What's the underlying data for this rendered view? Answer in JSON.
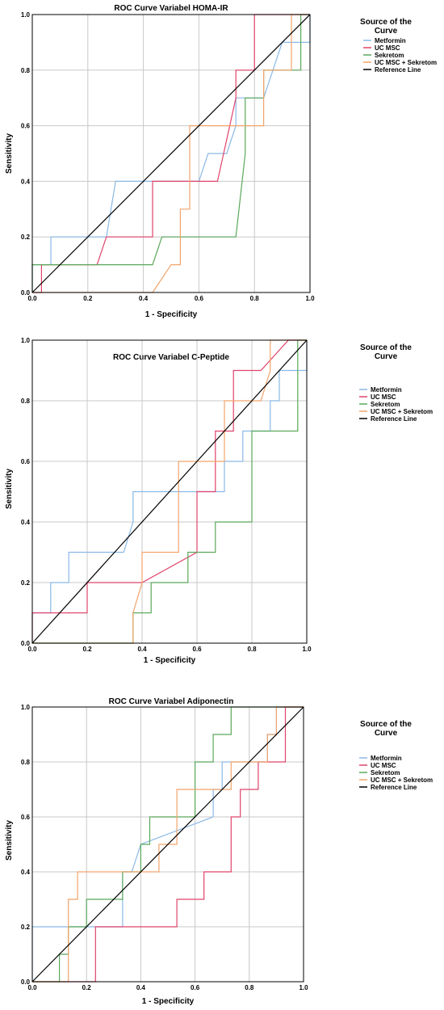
{
  "chart_data": [
    {
      "type": "line",
      "title": "ROC Curve Variabel HOMA-IR",
      "xlabel": "1 - Specificity",
      "ylabel": "Sensitivity",
      "xlim": [
        0,
        1
      ],
      "ylim": [
        0,
        1
      ],
      "x_ticks": [
        "0.0",
        "0.2",
        "0.4",
        "0.6",
        "0.8",
        "1.0"
      ],
      "y_ticks": [
        "0.0",
        "0.2",
        "0.4",
        "0.6",
        "0.8",
        "1.0"
      ],
      "grid": true,
      "legend": {
        "title": "Source of the Curve",
        "position": "right"
      },
      "series": [
        {
          "name": "Metformin",
          "color": "#8ab9e6",
          "x": [
            0,
            0,
            0.067,
            0.067,
            0.267,
            0.3,
            0.3,
            0.6,
            0.6,
            0.633,
            0.633,
            0.7,
            0.7,
            0.733,
            0.733,
            0.833,
            0.833,
            0.9,
            0.9,
            1,
            1
          ],
          "y": [
            0,
            0.1,
            0.1,
            0.2,
            0.2,
            0.4,
            0.4,
            0.4,
            0.4,
            0.5,
            0.5,
            0.5,
            0.5,
            0.6,
            0.7,
            0.7,
            0.7,
            0.9,
            0.9,
            0.9,
            1
          ]
        },
        {
          "name": "UC MSC",
          "color": "#e0436b",
          "x": [
            0,
            0.033,
            0.033,
            0.233,
            0.267,
            0.267,
            0.433,
            0.433,
            0.667,
            0.733,
            0.733,
            0.8,
            0.8,
            0.933,
            0.933,
            1
          ],
          "y": [
            0,
            0,
            0.1,
            0.1,
            0.2,
            0.2,
            0.2,
            0.4,
            0.4,
            0.7,
            0.8,
            0.8,
            1,
            1,
            1,
            1
          ]
        },
        {
          "name": "Sekretom",
          "color": "#5aa85a",
          "x": [
            0,
            0,
            0.433,
            0.467,
            0.467,
            0.733,
            0.767,
            0.767,
            0.833,
            0.833,
            0.967,
            0.967,
            1
          ],
          "y": [
            0,
            0.1,
            0.1,
            0.2,
            0.2,
            0.2,
            0.5,
            0.7,
            0.7,
            0.8,
            0.8,
            1,
            1
          ]
        },
        {
          "name": "UC MSC + Sekretom",
          "color": "#f2a46b",
          "x": [
            0,
            0.433,
            0.5,
            0.5,
            0.533,
            0.533,
            0.567,
            0.567,
            0.833,
            0.833,
            0.933,
            0.933,
            1
          ],
          "y": [
            0,
            0,
            0.1,
            0.1,
            0.1,
            0.3,
            0.3,
            0.6,
            0.6,
            0.8,
            0.8,
            1,
            1
          ]
        },
        {
          "name": "Reference Line",
          "color": "#000000",
          "x": [
            0,
            1
          ],
          "y": [
            0,
            1
          ]
        }
      ]
    },
    {
      "type": "line",
      "title": "ROC Curve Variabel C-Peptide",
      "xlabel": "1 - Specificity",
      "ylabel": "Sensitivity",
      "xlim": [
        0,
        1
      ],
      "ylim": [
        0,
        1
      ],
      "x_ticks": [
        "0.0",
        "0.2",
        "0.4",
        "0.6",
        "0.8",
        "1.0"
      ],
      "y_ticks": [
        "0.0",
        "0.2",
        "0.4",
        "0.6",
        "0.8",
        "1.0"
      ],
      "grid": true,
      "legend": {
        "title": "Source of the Curve",
        "position": "right"
      },
      "series": [
        {
          "name": "Metformin",
          "color": "#8ab9e6",
          "x": [
            0,
            0,
            0.067,
            0.067,
            0.133,
            0.133,
            0.333,
            0.367,
            0.367,
            0.7,
            0.7,
            0.767,
            0.767,
            0.867,
            0.867,
            0.9,
            0.9,
            1,
            1
          ],
          "y": [
            0,
            0.1,
            0.1,
            0.2,
            0.2,
            0.3,
            0.3,
            0.4,
            0.5,
            0.5,
            0.6,
            0.6,
            0.7,
            0.7,
            0.8,
            0.8,
            0.9,
            0.9,
            1
          ]
        },
        {
          "name": "UC MSC",
          "color": "#e0436b",
          "x": [
            0,
            0,
            0.2,
            0.2,
            0.4,
            0.4,
            0.6,
            0.6,
            0.667,
            0.667,
            0.733,
            0.733,
            0.833,
            0.833,
            0.933,
            0.933,
            1
          ],
          "y": [
            0,
            0.1,
            0.1,
            0.2,
            0.2,
            0.2,
            0.3,
            0.5,
            0.5,
            0.7,
            0.7,
            0.9,
            0.9,
            0.9,
            1,
            1,
            1
          ]
        },
        {
          "name": "Sekretom",
          "color": "#5aa85a",
          "x": [
            0,
            0.367,
            0.367,
            0.433,
            0.433,
            0.567,
            0.567,
            0.667,
            0.667,
            0.8,
            0.8,
            0.967,
            0.967,
            1
          ],
          "y": [
            0,
            0,
            0.1,
            0.1,
            0.2,
            0.2,
            0.3,
            0.3,
            0.4,
            0.4,
            0.7,
            0.7,
            1,
            1
          ]
        },
        {
          "name": "UC MSC + Sekretom",
          "color": "#f2a46b",
          "x": [
            0,
            0.367,
            0.367,
            0.4,
            0.4,
            0.533,
            0.533,
            0.7,
            0.7,
            0.833,
            0.867,
            0.867,
            1
          ],
          "y": [
            0,
            0,
            0.1,
            0.2,
            0.3,
            0.3,
            0.6,
            0.6,
            0.8,
            0.8,
            0.9,
            1,
            1
          ]
        },
        {
          "name": "Reference Line",
          "color": "#000000",
          "x": [
            0,
            1
          ],
          "y": [
            0,
            1
          ]
        }
      ]
    },
    {
      "type": "line",
      "title": "ROC Curve Variabel Adiponectin",
      "xlabel": "1 - Specificity",
      "ylabel": "Sensitivity",
      "xlim": [
        0,
        1
      ],
      "ylim": [
        0,
        1
      ],
      "x_ticks": [
        "0.0",
        "0.2",
        "0.4",
        "0.6",
        "0.8",
        "1.0"
      ],
      "y_ticks": [
        "0.0",
        "0.2",
        "0.4",
        "0.6",
        "0.8",
        "1.0"
      ],
      "grid": true,
      "legend": {
        "title": "Source of the Curve",
        "position": "right"
      },
      "series": [
        {
          "name": "Metformin",
          "color": "#8ab9e6",
          "x": [
            0,
            0,
            0.333,
            0.333,
            0.367,
            0.4,
            0.4,
            0.667,
            0.667,
            0.7,
            0.7,
            0.767,
            0.767,
            0.867,
            0.867,
            0.9,
            0.9,
            1
          ],
          "y": [
            0,
            0.2,
            0.2,
            0.4,
            0.4,
            0.5,
            0.5,
            0.6,
            0.7,
            0.7,
            0.8,
            0.8,
            0.8,
            0.8,
            0.9,
            0.9,
            1,
            1
          ]
        },
        {
          "name": "UC MSC",
          "color": "#e0436b",
          "x": [
            0,
            0.233,
            0.233,
            0.533,
            0.533,
            0.633,
            0.633,
            0.733,
            0.733,
            0.767,
            0.767,
            0.8,
            0.8,
            0.833,
            0.833,
            0.933,
            0.933,
            1
          ],
          "y": [
            0,
            0,
            0.2,
            0.2,
            0.3,
            0.3,
            0.4,
            0.4,
            0.6,
            0.6,
            0.7,
            0.7,
            0.7,
            0.7,
            0.8,
            0.8,
            1,
            1
          ]
        },
        {
          "name": "Sekretom",
          "color": "#5aa85a",
          "x": [
            0,
            0.1,
            0.1,
            0.133,
            0.133,
            0.2,
            0.2,
            0.333,
            0.333,
            0.4,
            0.4,
            0.433,
            0.433,
            0.6,
            0.6,
            0.667,
            0.667,
            0.733,
            0.733,
            1
          ],
          "y": [
            0,
            0,
            0.1,
            0.1,
            0.2,
            0.2,
            0.3,
            0.3,
            0.4,
            0.4,
            0.5,
            0.5,
            0.6,
            0.6,
            0.8,
            0.8,
            0.9,
            0.9,
            1,
            1
          ]
        },
        {
          "name": "UC MSC + Sekretom",
          "color": "#f2a46b",
          "x": [
            0,
            0.133,
            0.133,
            0.167,
            0.167,
            0.467,
            0.467,
            0.533,
            0.533,
            0.733,
            0.733,
            0.867,
            0.867,
            0.9,
            0.9,
            1
          ],
          "y": [
            0,
            0,
            0.3,
            0.3,
            0.4,
            0.4,
            0.5,
            0.5,
            0.7,
            0.7,
            0.8,
            0.8,
            0.9,
            0.9,
            1,
            1
          ]
        },
        {
          "name": "Reference Line",
          "color": "#000000",
          "x": [
            0,
            1
          ],
          "y": [
            0,
            1
          ]
        }
      ]
    }
  ]
}
